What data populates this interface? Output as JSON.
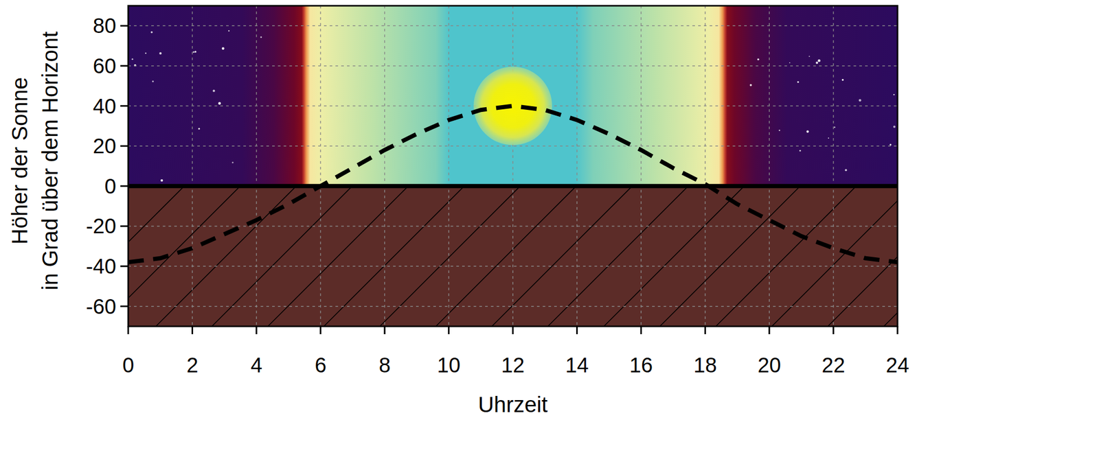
{
  "chart_data": {
    "type": "line",
    "x_label": "Uhrzeit",
    "y_label": [
      "Höher der Sonne",
      "in Grad über dem Horizont"
    ],
    "x": [
      0,
      1,
      2,
      3,
      4,
      5,
      6,
      7,
      8,
      9,
      10,
      11,
      12,
      13,
      14,
      15,
      16,
      17,
      18,
      19,
      20,
      21,
      22,
      23,
      24
    ],
    "series": [
      {
        "values": [
          -38,
          -36,
          -31,
          -24,
          -17,
          -9,
          0,
          9,
          18,
          26,
          33,
          38,
          40,
          38,
          33,
          26,
          18,
          9,
          1,
          -9,
          -17,
          -25,
          -31,
          -36,
          -38
        ],
        "color": "#000000",
        "line_style": "dashed"
      }
    ],
    "xlim": [
      0,
      24
    ],
    "xticks": [
      0,
      2,
      4,
      6,
      8,
      10,
      12,
      14,
      16,
      18,
      20,
      22,
      24
    ],
    "ylim": [
      -70,
      90
    ],
    "yticks": [
      -60,
      -40,
      -20,
      0,
      20,
      40,
      60,
      80
    ],
    "grid": true
  }
}
